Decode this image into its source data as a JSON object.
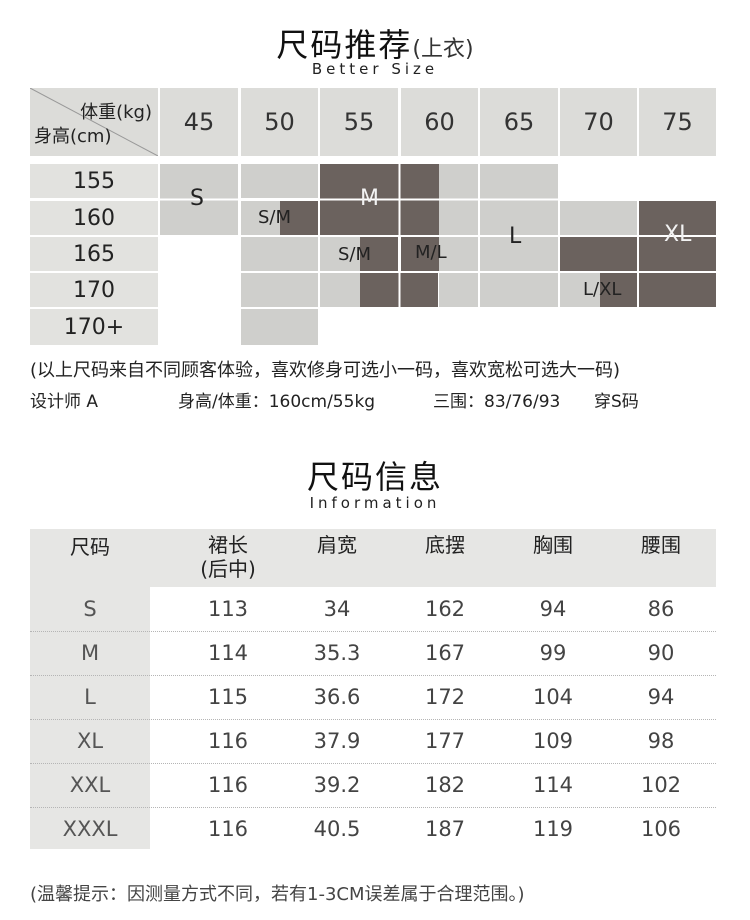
{
  "section1": {
    "title": "尺码推荐",
    "title_sub": "(上衣)",
    "title_en": "Better Size"
  },
  "grid": {
    "corner_weight": "体重(kg)",
    "corner_height": "身高(cm)",
    "weights": [
      "45",
      "50",
      "55",
      "60",
      "65",
      "70",
      "75"
    ],
    "heights": [
      "155",
      "160",
      "165",
      "170",
      "170+"
    ],
    "size_labels": {
      "S": "S",
      "SM1": "S/M",
      "M": "M",
      "SM2": "S/M",
      "ML": "M/L",
      "L": "L",
      "XL": "XL",
      "LXL": "L/XL"
    }
  },
  "note": "(以上尺码来自不同顾客体验，喜欢修身可选小一码，喜欢宽松可选大一码)",
  "designer": {
    "name": "设计师 A",
    "hw": "身高/体重：160cm/55kg",
    "bust": "三围：83/76/93",
    "wear": "穿S码"
  },
  "section2": {
    "title": "尺码信息",
    "title_en": "Information"
  },
  "info_table": {
    "headers": [
      "尺码",
      "裙长",
      "(后中)",
      "肩宽",
      "底摆",
      "胸围",
      "腰围"
    ],
    "rows": [
      [
        "S",
        "113",
        "34",
        "162",
        "94",
        "86"
      ],
      [
        "M",
        "114",
        "35.3",
        "167",
        "99",
        "90"
      ],
      [
        "L",
        "115",
        "36.6",
        "172",
        "104",
        "94"
      ],
      [
        "XL",
        "116",
        "37.9",
        "177",
        "109",
        "98"
      ],
      [
        "XXL",
        "116",
        "39.2",
        "182",
        "114",
        "102"
      ],
      [
        "XXXL",
        "116",
        "40.5",
        "187",
        "119",
        "106"
      ]
    ]
  },
  "footer": "(温馨提示：因测量方式不同，若有1-3CM误差属于合理范围。)"
}
